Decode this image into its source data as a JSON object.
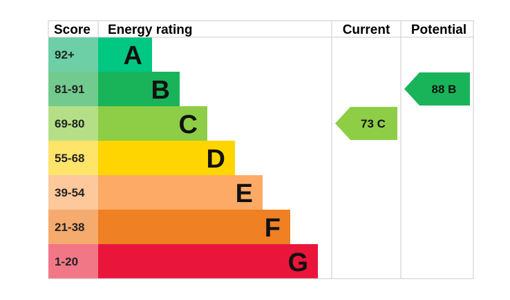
{
  "header": {
    "score": "Score",
    "energy_rating": "Energy rating",
    "current": "Current",
    "potential": "Potential"
  },
  "chart_data": {
    "type": "table",
    "bands": [
      {
        "score": "92+",
        "letter": "A",
        "color": "#00c781",
        "score_bg": "#6ccfa5"
      },
      {
        "score": "81-91",
        "letter": "B",
        "color": "#19b459",
        "score_bg": "#72ca8e"
      },
      {
        "score": "69-80",
        "letter": "C",
        "color": "#8dce46",
        "score_bg": "#b5df86"
      },
      {
        "score": "55-68",
        "letter": "D",
        "color": "#ffd500",
        "score_bg": "#ffe46a"
      },
      {
        "score": "39-54",
        "letter": "E",
        "color": "#fcaa65",
        "score_bg": "#fdc89b"
      },
      {
        "score": "21-38",
        "letter": "F",
        "color": "#ef8023",
        "score_bg": "#f5ab6e"
      },
      {
        "score": "1-20",
        "letter": "G",
        "color": "#e9153b",
        "score_bg": "#f17787"
      }
    ],
    "current": {
      "value": 73,
      "letter": "C",
      "label": "73 C",
      "color": "#8dce46"
    },
    "potential": {
      "value": 88,
      "letter": "B",
      "label": "88 B",
      "color": "#19b459"
    }
  }
}
